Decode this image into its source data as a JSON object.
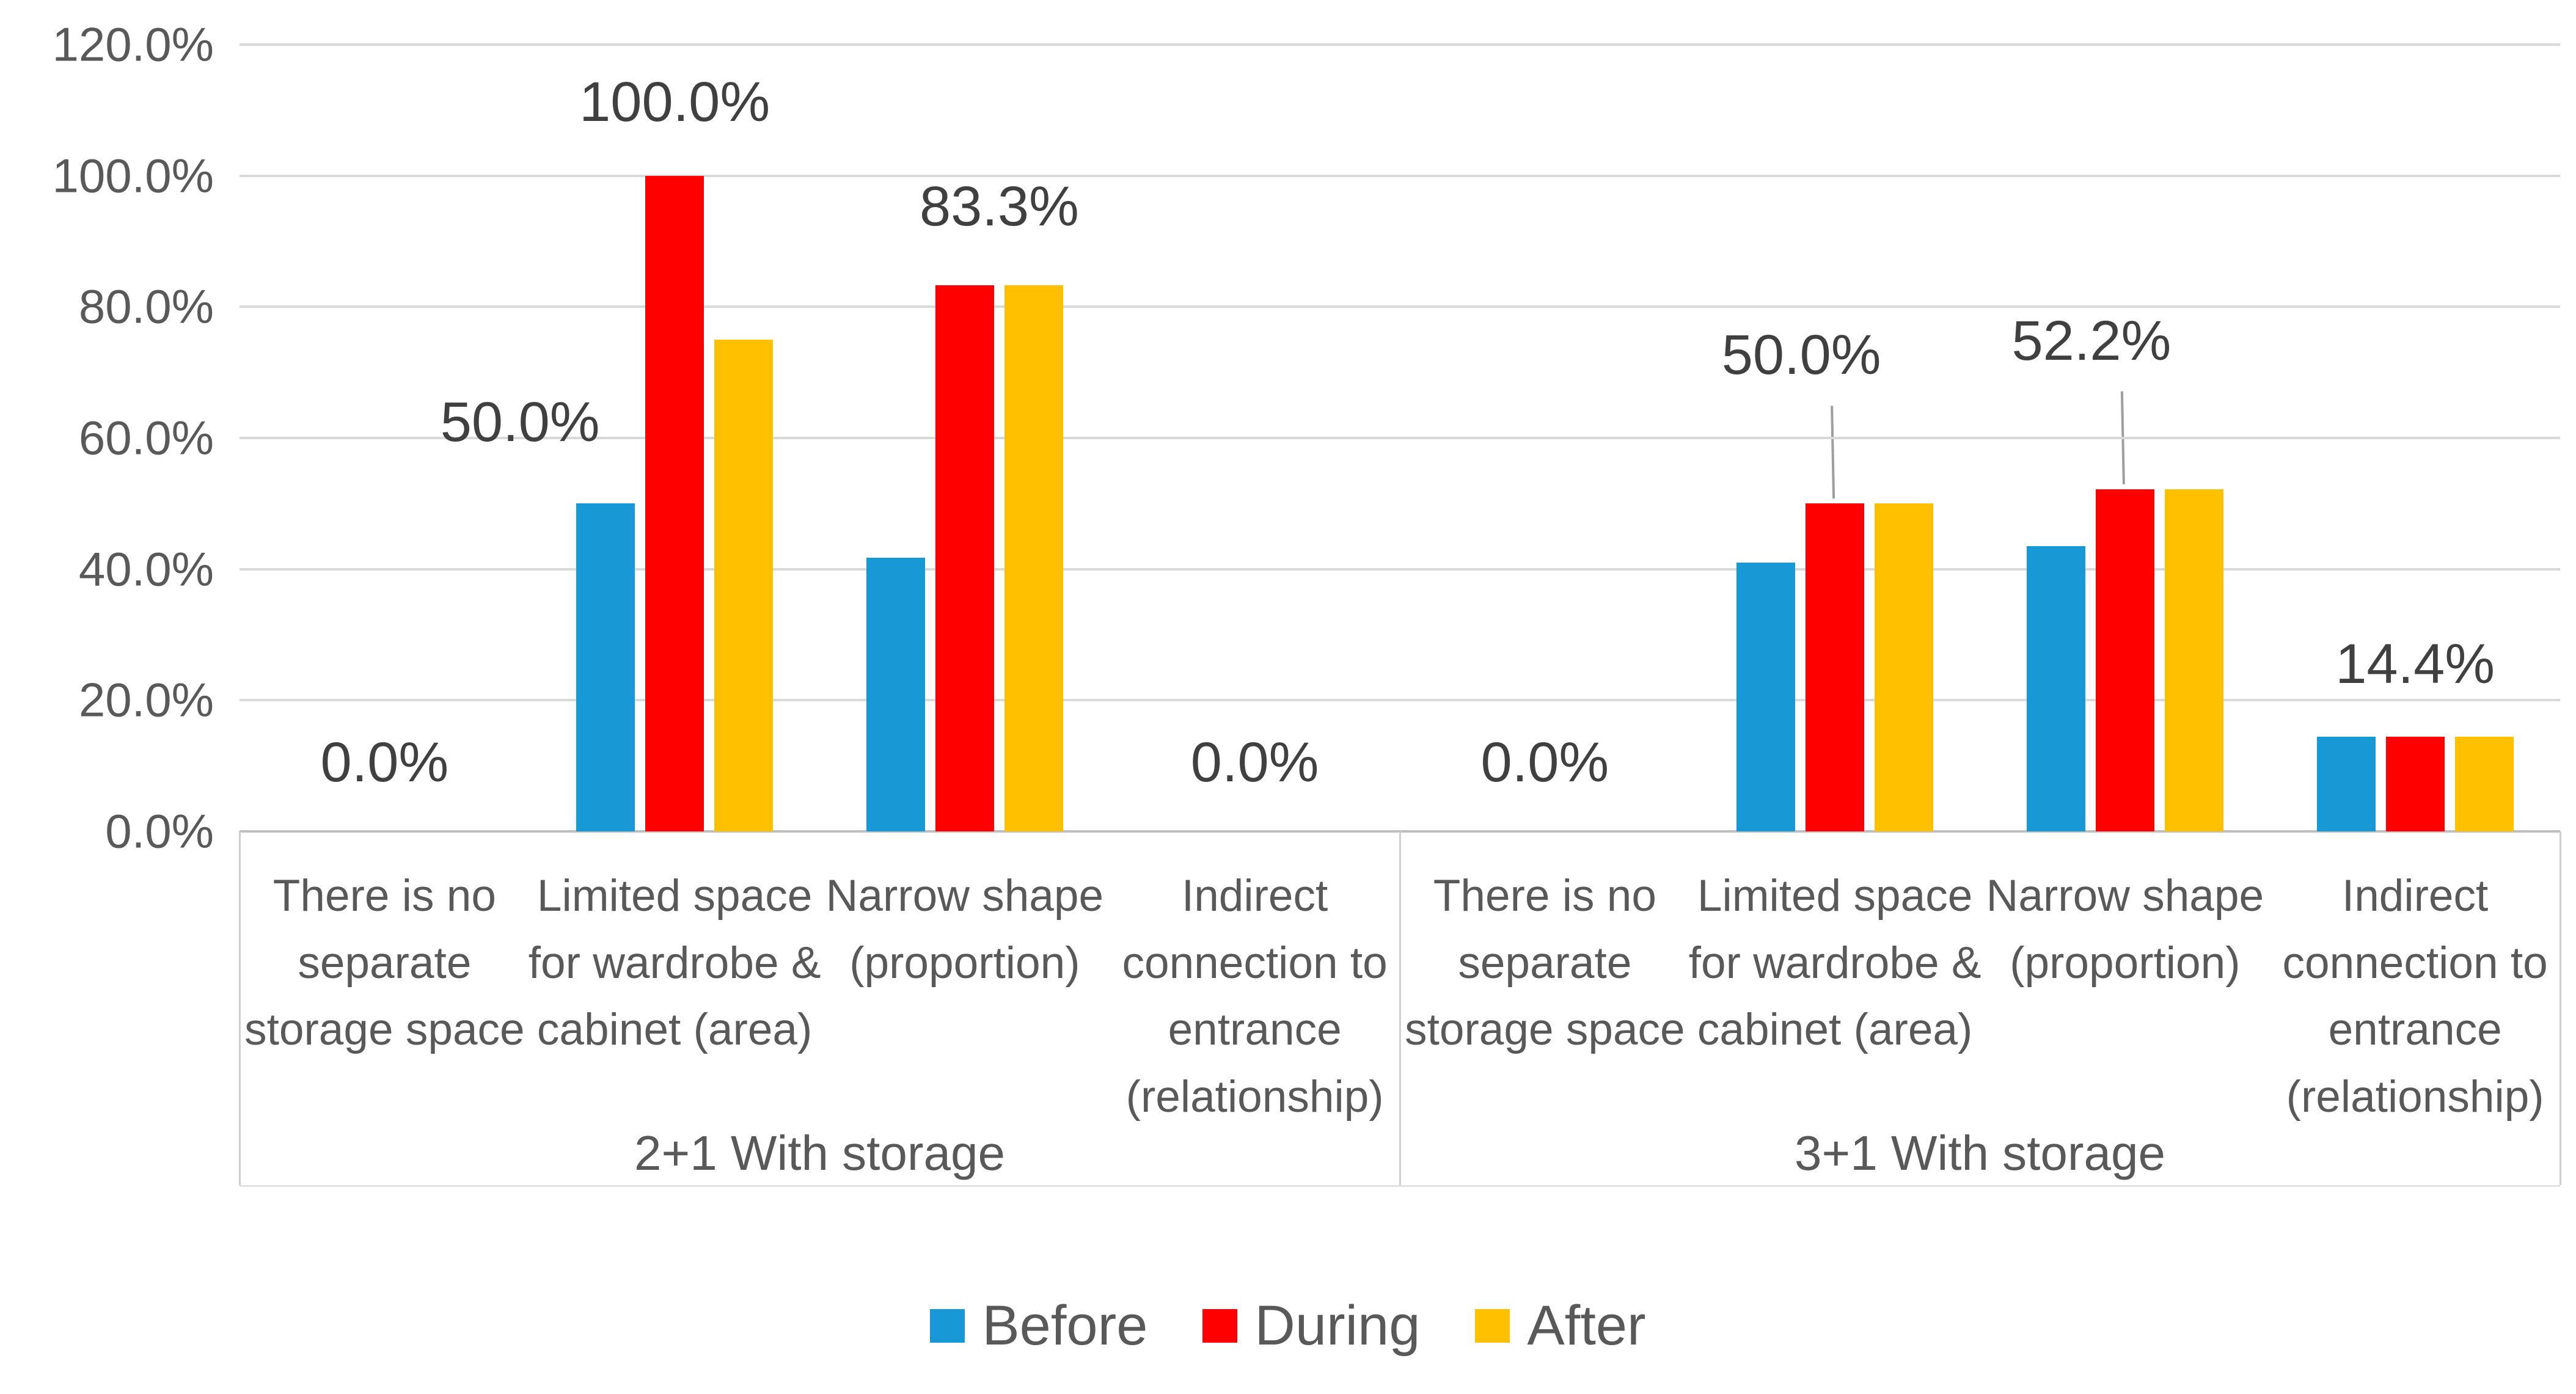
{
  "chart_data": {
    "type": "bar",
    "title": "",
    "xlabel": "",
    "ylabel": "",
    "y_axis": {
      "min": 0,
      "max": 120,
      "step": 20,
      "ticks": [
        "0.0%",
        "20.0%",
        "40.0%",
        "60.0%",
        "80.0%",
        "100.0%",
        "120.0%"
      ],
      "grid": true
    },
    "legend_position": "bottom-center",
    "series": [
      {
        "name": "Before",
        "color": "#1899D6"
      },
      {
        "name": "During",
        "color": "#FE0000"
      },
      {
        "name": "After",
        "color": "#FFC000"
      }
    ],
    "groups": [
      {
        "label": "2+1 With storage",
        "categories": [
          "There is no separate storage space",
          "Limited space for wardrobe & cabinet (area)",
          "Narrow shape (proportion)",
          "Indirect connection to entrance (relationship)"
        ],
        "series_values": [
          [
            0,
            50.0,
            41.7,
            0
          ],
          [
            0,
            100.0,
            83.3,
            0
          ],
          [
            0,
            75.0,
            83.3,
            0
          ]
        ]
      },
      {
        "label": "3+1 With storage",
        "categories": [
          "There is no separate storage space",
          "Limited space for wardrobe & cabinet (area)",
          "Narrow shape (proportion)",
          "Indirect connection to entrance (relationship)"
        ],
        "series_values": [
          [
            0,
            41.0,
            43.5,
            14.4
          ],
          [
            0,
            50.0,
            52.2,
            14.4
          ],
          [
            0,
            50.0,
            52.2,
            14.4
          ]
        ]
      }
    ],
    "data_labels": [
      {
        "group": 0,
        "category": 0,
        "text": "0.0%",
        "anchor": "slot"
      },
      {
        "group": 0,
        "category": 1,
        "text": "50.0%",
        "anchor": "before-left"
      },
      {
        "group": 0,
        "category": 1,
        "text": "100.0%",
        "anchor": "during"
      },
      {
        "group": 0,
        "category": 2,
        "text": "83.3%",
        "anchor": "pair"
      },
      {
        "group": 0,
        "category": 3,
        "text": "0.0%",
        "anchor": "slot"
      },
      {
        "group": 1,
        "category": 0,
        "text": "0.0%",
        "anchor": "slot"
      },
      {
        "group": 1,
        "category": 1,
        "text": "50.0%",
        "anchor": "during-leader"
      },
      {
        "group": 1,
        "category": 2,
        "text": "52.2%",
        "anchor": "during-leader"
      },
      {
        "group": 1,
        "category": 3,
        "text": "14.4%",
        "anchor": "cluster"
      }
    ],
    "colors": {
      "gridline": "#d9d9d9",
      "axis_line": "#bfbfbf",
      "label_text": "#404040",
      "axis_text": "#595959",
      "leader_line": "#9e9e9e"
    }
  },
  "legend": {
    "items": [
      {
        "label": "Before",
        "color": "#1899D6"
      },
      {
        "label": "During",
        "color": "#FE0000"
      },
      {
        "label": "After",
        "color": "#FFC000"
      }
    ]
  }
}
